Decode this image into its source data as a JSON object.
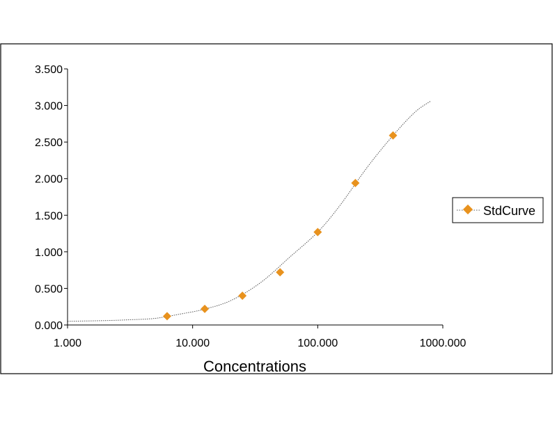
{
  "chart_data": {
    "type": "scatter",
    "title": "",
    "xlabel": "Concentrations",
    "ylabel": "",
    "x_scale": "log",
    "xlim": [
      1,
      1000
    ],
    "ylim": [
      0,
      3.5
    ],
    "x_ticks": [
      {
        "value": 1,
        "label": "1.000"
      },
      {
        "value": 10,
        "label": "10.000"
      },
      {
        "value": 100,
        "label": "100.000"
      },
      {
        "value": 1000,
        "label": "1000.000"
      }
    ],
    "y_ticks": [
      {
        "value": 0,
        "label": "0.000"
      },
      {
        "value": 0.5,
        "label": "0.500"
      },
      {
        "value": 1,
        "label": "1.000"
      },
      {
        "value": 1.5,
        "label": "1.500"
      },
      {
        "value": 2,
        "label": "2.000"
      },
      {
        "value": 2.5,
        "label": "2.500"
      },
      {
        "value": 3,
        "label": "3.000"
      },
      {
        "value": 3.5,
        "label": "3.500"
      }
    ],
    "grid": false,
    "legend": "right",
    "series": [
      {
        "name": "StdCurve",
        "color": "#E8921E",
        "marker": "diamond",
        "x": [
          6.25,
          12.5,
          25,
          50,
          100,
          200,
          400
        ],
        "y": [
          0.12,
          0.22,
          0.4,
          0.72,
          1.27,
          1.94,
          2.59
        ]
      }
    ],
    "fit_curve": {
      "style": "dotted",
      "color": "#555555",
      "x": [
        1,
        2,
        3,
        5,
        8,
        12,
        20,
        35,
        60,
        100,
        150,
        250,
        400,
        600,
        800
      ],
      "y": [
        0.05,
        0.06,
        0.07,
        0.09,
        0.15,
        0.21,
        0.33,
        0.58,
        0.93,
        1.27,
        1.63,
        2.16,
        2.59,
        2.91,
        3.06
      ]
    }
  }
}
